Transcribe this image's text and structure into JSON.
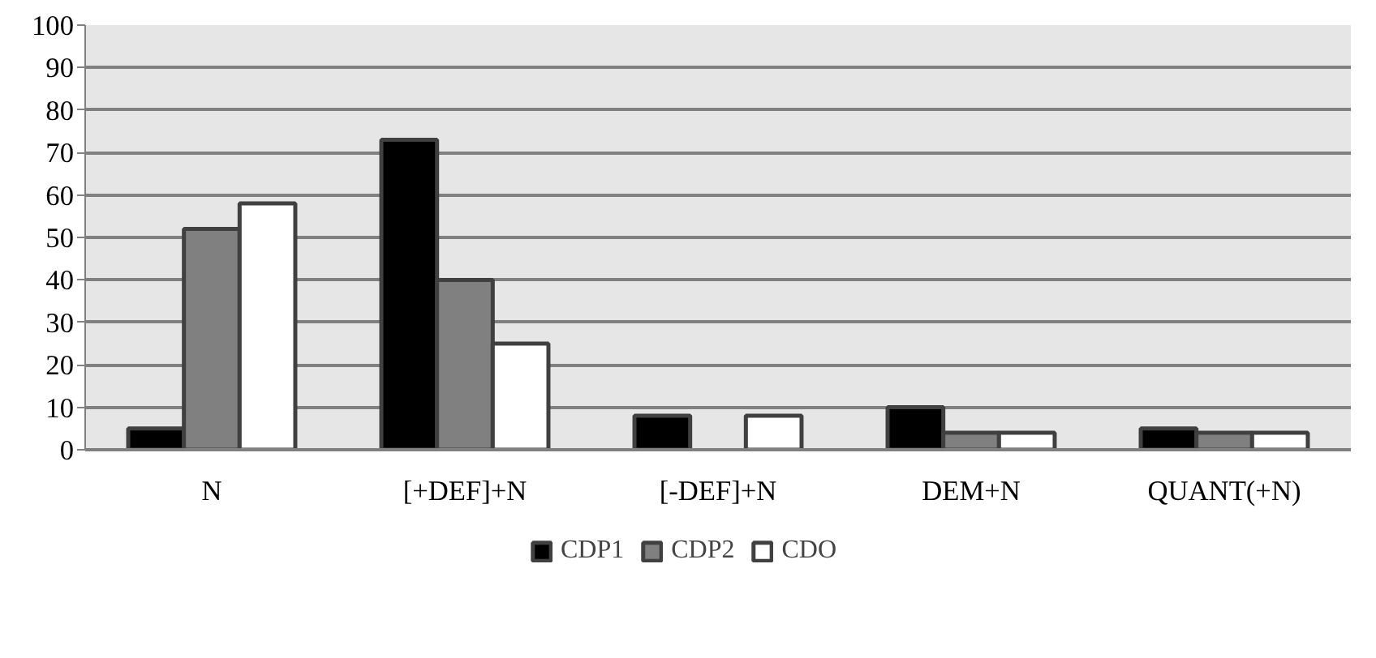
{
  "chart_data": {
    "type": "bar",
    "categories": [
      "N",
      "[+DEF]+N",
      "[-DEF]+N",
      "DEM+N",
      "QUANT(+N)"
    ],
    "series": [
      {
        "name": "CDP1",
        "color": "#000000",
        "values": [
          5,
          73,
          8,
          10,
          5
        ]
      },
      {
        "name": "CDP2",
        "color": "#808080",
        "values": [
          52,
          40,
          0,
          4,
          4
        ]
      },
      {
        "name": "CDO",
        "color": "#ffffff",
        "values": [
          58,
          25,
          8,
          4,
          4
        ]
      }
    ],
    "ylim": [
      0,
      100
    ],
    "yticks": [
      0,
      10,
      20,
      30,
      40,
      50,
      60,
      70,
      80,
      90,
      100
    ],
    "grid": "y",
    "legend": "bottom"
  }
}
